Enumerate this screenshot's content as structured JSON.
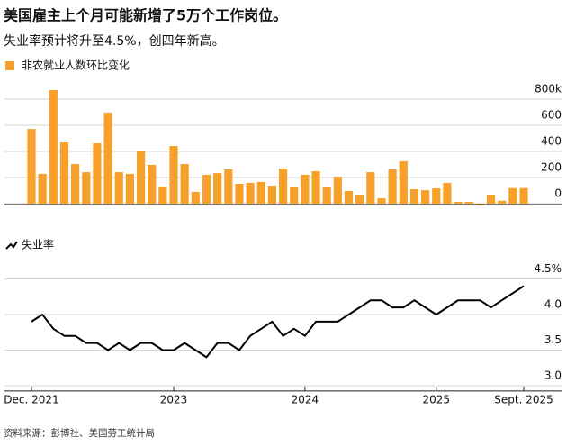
{
  "title": "美国雇主上个月可能新增了5万个工作岗位。",
  "subtitle": "失业率预计将升至4.5%，创四年新高。",
  "source": "资料来源：彭博社、美国劳工统计局",
  "chart_data": [
    {
      "type": "bar",
      "series": [
        {
          "name": "非农就业人数环比变化",
          "color": "#f7a12b",
          "values": [
            572,
            228,
            869,
            469,
            303,
            241,
            462,
            697,
            241,
            228,
            400,
            297,
            131,
            441,
            303,
            90,
            221,
            234,
            262,
            152,
            159,
            166,
            138,
            269,
            124,
            221,
            248,
            124,
            207,
            97,
            69,
            241,
            41,
            262,
            324,
            110,
            103,
            117,
            159,
            14,
            14,
            -14,
            69,
            22,
            119,
            119
          ]
        }
      ],
      "ylim": [
        -20,
        880
      ],
      "yticks": [
        0,
        200,
        400,
        600,
        {
          "value": 800,
          "label": "800k"
        }
      ],
      "grid": true
    },
    {
      "type": "line",
      "categories": [
        "Dec. 2021",
        null,
        null,
        null,
        null,
        null,
        null,
        null,
        null,
        null,
        null,
        null,
        null,
        "2023",
        null,
        null,
        null,
        null,
        null,
        null,
        null,
        null,
        null,
        null,
        null,
        "2024",
        null,
        null,
        null,
        null,
        null,
        null,
        null,
        null,
        null,
        null,
        null,
        "2025",
        null,
        null,
        null,
        null,
        null,
        null,
        null,
        "Sept. 2025"
      ],
      "series": [
        {
          "name": "失业率",
          "color": "#000000",
          "values": [
            3.9,
            4.0,
            3.8,
            3.7,
            3.7,
            3.6,
            3.6,
            3.5,
            3.6,
            3.5,
            3.6,
            3.6,
            3.5,
            3.5,
            3.6,
            3.5,
            3.4,
            3.6,
            3.6,
            3.5,
            3.7,
            3.8,
            3.9,
            3.7,
            3.8,
            3.7,
            3.9,
            3.9,
            3.9,
            4.0,
            4.1,
            4.2,
            4.2,
            4.1,
            4.1,
            4.2,
            4.1,
            4.0,
            4.1,
            4.2,
            4.2,
            4.2,
            4.1,
            4.2,
            4.3,
            4.4
          ]
        }
      ],
      "ylim": [
        2.9,
        4.6
      ],
      "yticks": [
        {
          "value": 3,
          "label": "3.0"
        },
        3.5,
        {
          "value": 4,
          "label": "4.0"
        },
        {
          "value": 4.5,
          "label": "4.5%"
        }
      ],
      "grid": true
    }
  ]
}
